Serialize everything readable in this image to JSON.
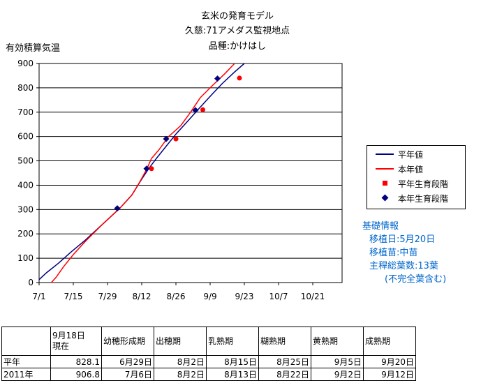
{
  "chart_data": {
    "type": "line",
    "title": [
      "玄米の発育モデル",
      "久慈:71アメダス監視地点",
      "品種:かけはし"
    ],
    "ylabel": "有効積算気温",
    "xlabel": "",
    "ylim": [
      0,
      900
    ],
    "y_ticks": [
      0,
      100,
      200,
      300,
      400,
      500,
      600,
      700,
      800,
      900
    ],
    "x_ticks": [
      "7/1",
      "7/15",
      "7/29",
      "8/12",
      "8/26",
      "9/9",
      "9/23",
      "10/7",
      "10/21"
    ],
    "x_range_days": [
      0,
      124
    ],
    "grid": "horizontal",
    "legend_position": "right",
    "series": [
      {
        "name": "平年値",
        "kind": "line",
        "color": "#000080",
        "points": [
          [
            0,
            12
          ],
          [
            3,
            40
          ],
          [
            8,
            80
          ],
          [
            13,
            125
          ],
          [
            19,
            175
          ],
          [
            26,
            240
          ],
          [
            33,
            305
          ],
          [
            38,
            360
          ],
          [
            42,
            425
          ],
          [
            45,
            470
          ],
          [
            48,
            510
          ],
          [
            52,
            560
          ],
          [
            56,
            610
          ],
          [
            61,
            665
          ],
          [
            65,
            710
          ],
          [
            70,
            765
          ],
          [
            75,
            818
          ],
          [
            80,
            865
          ],
          [
            84,
            900
          ]
        ]
      },
      {
        "name": "本年値",
        "kind": "line",
        "color": "#ff0000",
        "points": [
          [
            5,
            0
          ],
          [
            7,
            22
          ],
          [
            10,
            65
          ],
          [
            14,
            115
          ],
          [
            19,
            170
          ],
          [
            26,
            240
          ],
          [
            33,
            305
          ],
          [
            38,
            360
          ],
          [
            41,
            410
          ],
          [
            44,
            465
          ],
          [
            46,
            510
          ],
          [
            49,
            545
          ],
          [
            53,
            600
          ],
          [
            58,
            645
          ],
          [
            62,
            700
          ],
          [
            66,
            760
          ],
          [
            71,
            810
          ],
          [
            76,
            858
          ],
          [
            80,
            900
          ]
        ]
      },
      {
        "name": "平年生育段階",
        "kind": "marker",
        "marker": "circle",
        "color": "#ff0000",
        "points": [
          [
            46,
            468
          ],
          [
            56,
            590
          ],
          [
            67,
            710
          ],
          [
            82,
            840
          ]
        ]
      },
      {
        "name": "本年生育段階",
        "kind": "marker",
        "marker": "diamond",
        "color": "#000080",
        "points": [
          [
            32,
            305
          ],
          [
            44,
            468
          ],
          [
            52,
            590
          ],
          [
            64,
            708
          ],
          [
            73,
            838
          ]
        ]
      }
    ]
  },
  "info": {
    "heading": "基礎情報",
    "lines": [
      "移植日:5月20日",
      "移植苗:中苗",
      "主稈総葉数:13葉",
      "(不完全葉含む)"
    ]
  },
  "table": {
    "header": [
      "",
      "9月18日\n現在",
      "幼穂形成期",
      "出穂期",
      "乳熟期",
      "糊熟期",
      "黄熟期",
      "成熟期"
    ],
    "rows": [
      [
        "平年",
        "828.1",
        "6月29日",
        "8月2日",
        "8月15日",
        "8月25日",
        "9月5日",
        "9月20日"
      ],
      [
        "2011年",
        "906.8",
        "7月6日",
        "8月2日",
        "8月13日",
        "8月22日",
        "9月2日",
        "9月12日"
      ]
    ]
  }
}
